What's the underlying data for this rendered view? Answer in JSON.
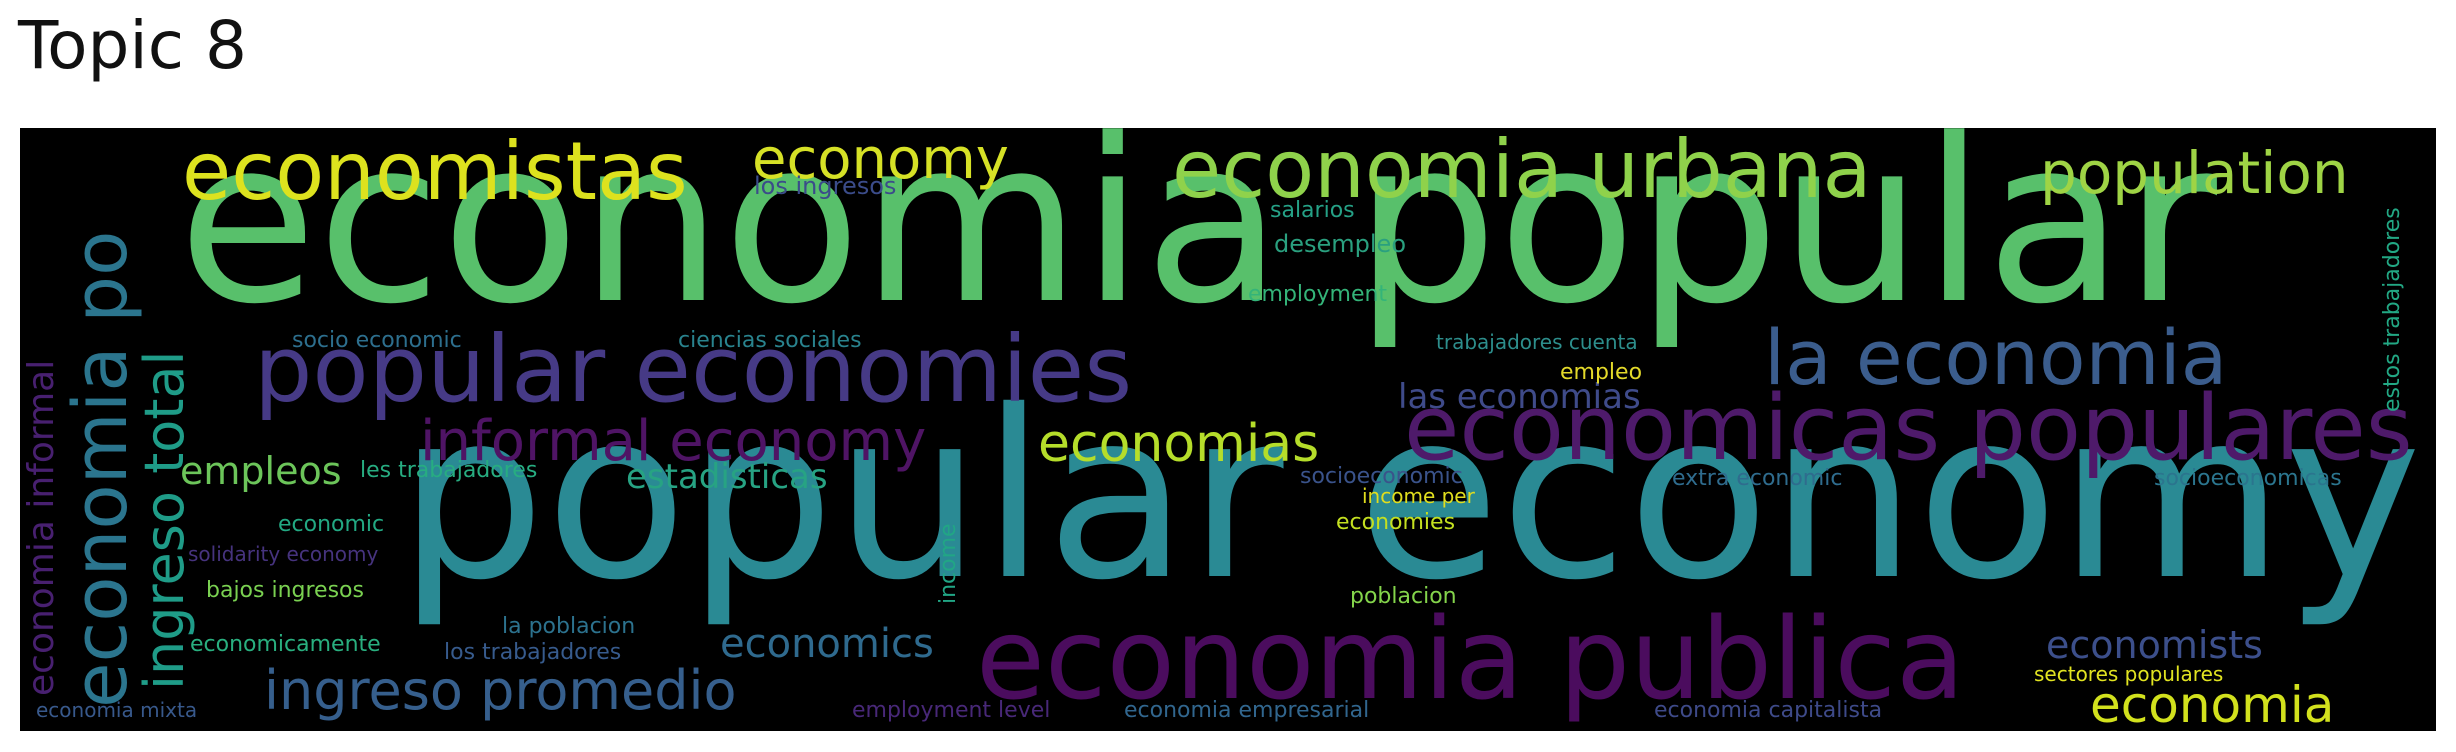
{
  "title": "Topic 8",
  "words": [
    {
      "text": "popular economy",
      "color": "#2a8a94"
    },
    {
      "text": "economia popular",
      "color": "#58c06b"
    },
    {
      "text": "popular economies",
      "color": "#463a86"
    },
    {
      "text": "economia publica",
      "color": "#4b0c5e"
    },
    {
      "text": "economicas populares",
      "color": "#4e1a6a"
    },
    {
      "text": "economia urbana",
      "color": "#8fd24b"
    },
    {
      "text": "economistas",
      "color": "#dde21e"
    },
    {
      "text": "economy",
      "color": "#d6e126"
    },
    {
      "text": "la economia",
      "color": "#3b5d8d"
    },
    {
      "text": "population",
      "color": "#9fd445"
    },
    {
      "text": "informal economy",
      "color": "#4f1465"
    },
    {
      "text": "economia po",
      "color": "#2b758e"
    },
    {
      "text": "ingreso total",
      "color": "#1f9c88"
    },
    {
      "text": "economia informal",
      "color": "#482070"
    },
    {
      "text": "ingreso promedio",
      "color": "#365f8d"
    },
    {
      "text": "economias",
      "color": "#b5dd2a"
    },
    {
      "text": "empleos",
      "color": "#6cc55a"
    },
    {
      "text": "estadisticas",
      "color": "#27a383"
    },
    {
      "text": "las economias",
      "color": "#3f4b8a"
    },
    {
      "text": "economics",
      "color": "#2f6a8e"
    },
    {
      "text": "economists",
      "color": "#3c4f8b"
    },
    {
      "text": "economia",
      "color": "#d2e11d"
    },
    {
      "text": "estos trabajadores",
      "color": "#22a884"
    },
    {
      "text": "los ingresos",
      "color": "#3b4c8a"
    },
    {
      "text": "salarios",
      "color": "#25a186"
    },
    {
      "text": "desempleo",
      "color": "#2aa07f"
    },
    {
      "text": "employment",
      "color": "#34b479"
    },
    {
      "text": "socio economic",
      "color": "#2d6f8e"
    },
    {
      "text": "ciencias sociales",
      "color": "#29838e"
    },
    {
      "text": "trabajadores cuenta",
      "color": "#2d8e8c"
    },
    {
      "text": "empleo",
      "color": "#e3d92a"
    },
    {
      "text": "les trabajadores",
      "color": "#27ad81"
    },
    {
      "text": "socioeconomic",
      "color": "#3a538b"
    },
    {
      "text": "income per",
      "color": "#e0dd1e"
    },
    {
      "text": "extra economic",
      "color": "#2f6c8e"
    },
    {
      "text": "socioeconomicas",
      "color": "#2b758e"
    },
    {
      "text": "economies",
      "color": "#c4e020"
    },
    {
      "text": "economic",
      "color": "#23a983"
    },
    {
      "text": "solidarity economy",
      "color": "#46337e"
    },
    {
      "text": "bajos ingresos",
      "color": "#7ad151"
    },
    {
      "text": "income",
      "color": "#21a685"
    },
    {
      "text": "poblacion",
      "color": "#84d44b"
    },
    {
      "text": "la poblacion",
      "color": "#2c728e"
    },
    {
      "text": "economicamente",
      "color": "#29af7f"
    },
    {
      "text": "los trabajadores",
      "color": "#375b8d"
    },
    {
      "text": "sectores populares",
      "color": "#e1e321"
    },
    {
      "text": "economia mixta",
      "color": "#38598c"
    },
    {
      "text": "employment level",
      "color": "#482878"
    },
    {
      "text": "economia empresarial",
      "color": "#31668e"
    },
    {
      "text": "economia capitalista",
      "color": "#3e4a89"
    }
  ]
}
